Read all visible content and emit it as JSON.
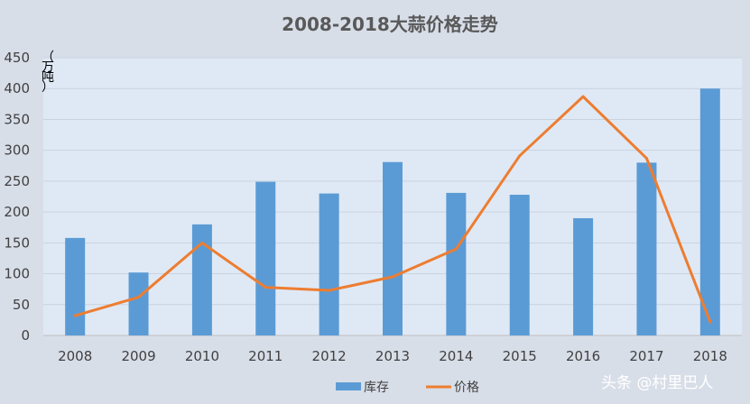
{
  "chart_data": {
    "type": "bar",
    "title": "2008-2018大蒜价格走势",
    "xlabel": "",
    "ylabel": "（万吨）",
    "categories": [
      "2008",
      "2009",
      "2010",
      "2011",
      "2012",
      "2013",
      "2014",
      "2015",
      "2016",
      "2017",
      "2018"
    ],
    "ylim": [
      0,
      450
    ],
    "yticks": [
      0,
      50,
      100,
      150,
      200,
      250,
      300,
      350,
      400,
      450
    ],
    "grid": true,
    "legend_position": "bottom",
    "series": [
      {
        "name": "库存",
        "type": "bar",
        "color": "#5b9bd5",
        "values": [
          158,
          102,
          180,
          249,
          230,
          281,
          231,
          228,
          190,
          280,
          400
        ]
      },
      {
        "name": "价格",
        "type": "line",
        "color": "#ed7d31",
        "values": [
          32,
          62,
          150,
          78,
          73,
          95,
          140,
          291,
          387,
          287,
          22
        ]
      }
    ]
  },
  "watermark": "头条 @村里巴人",
  "colors": {
    "plot_bg": "#dfe9f5",
    "page_bg": "#d8dee8"
  }
}
